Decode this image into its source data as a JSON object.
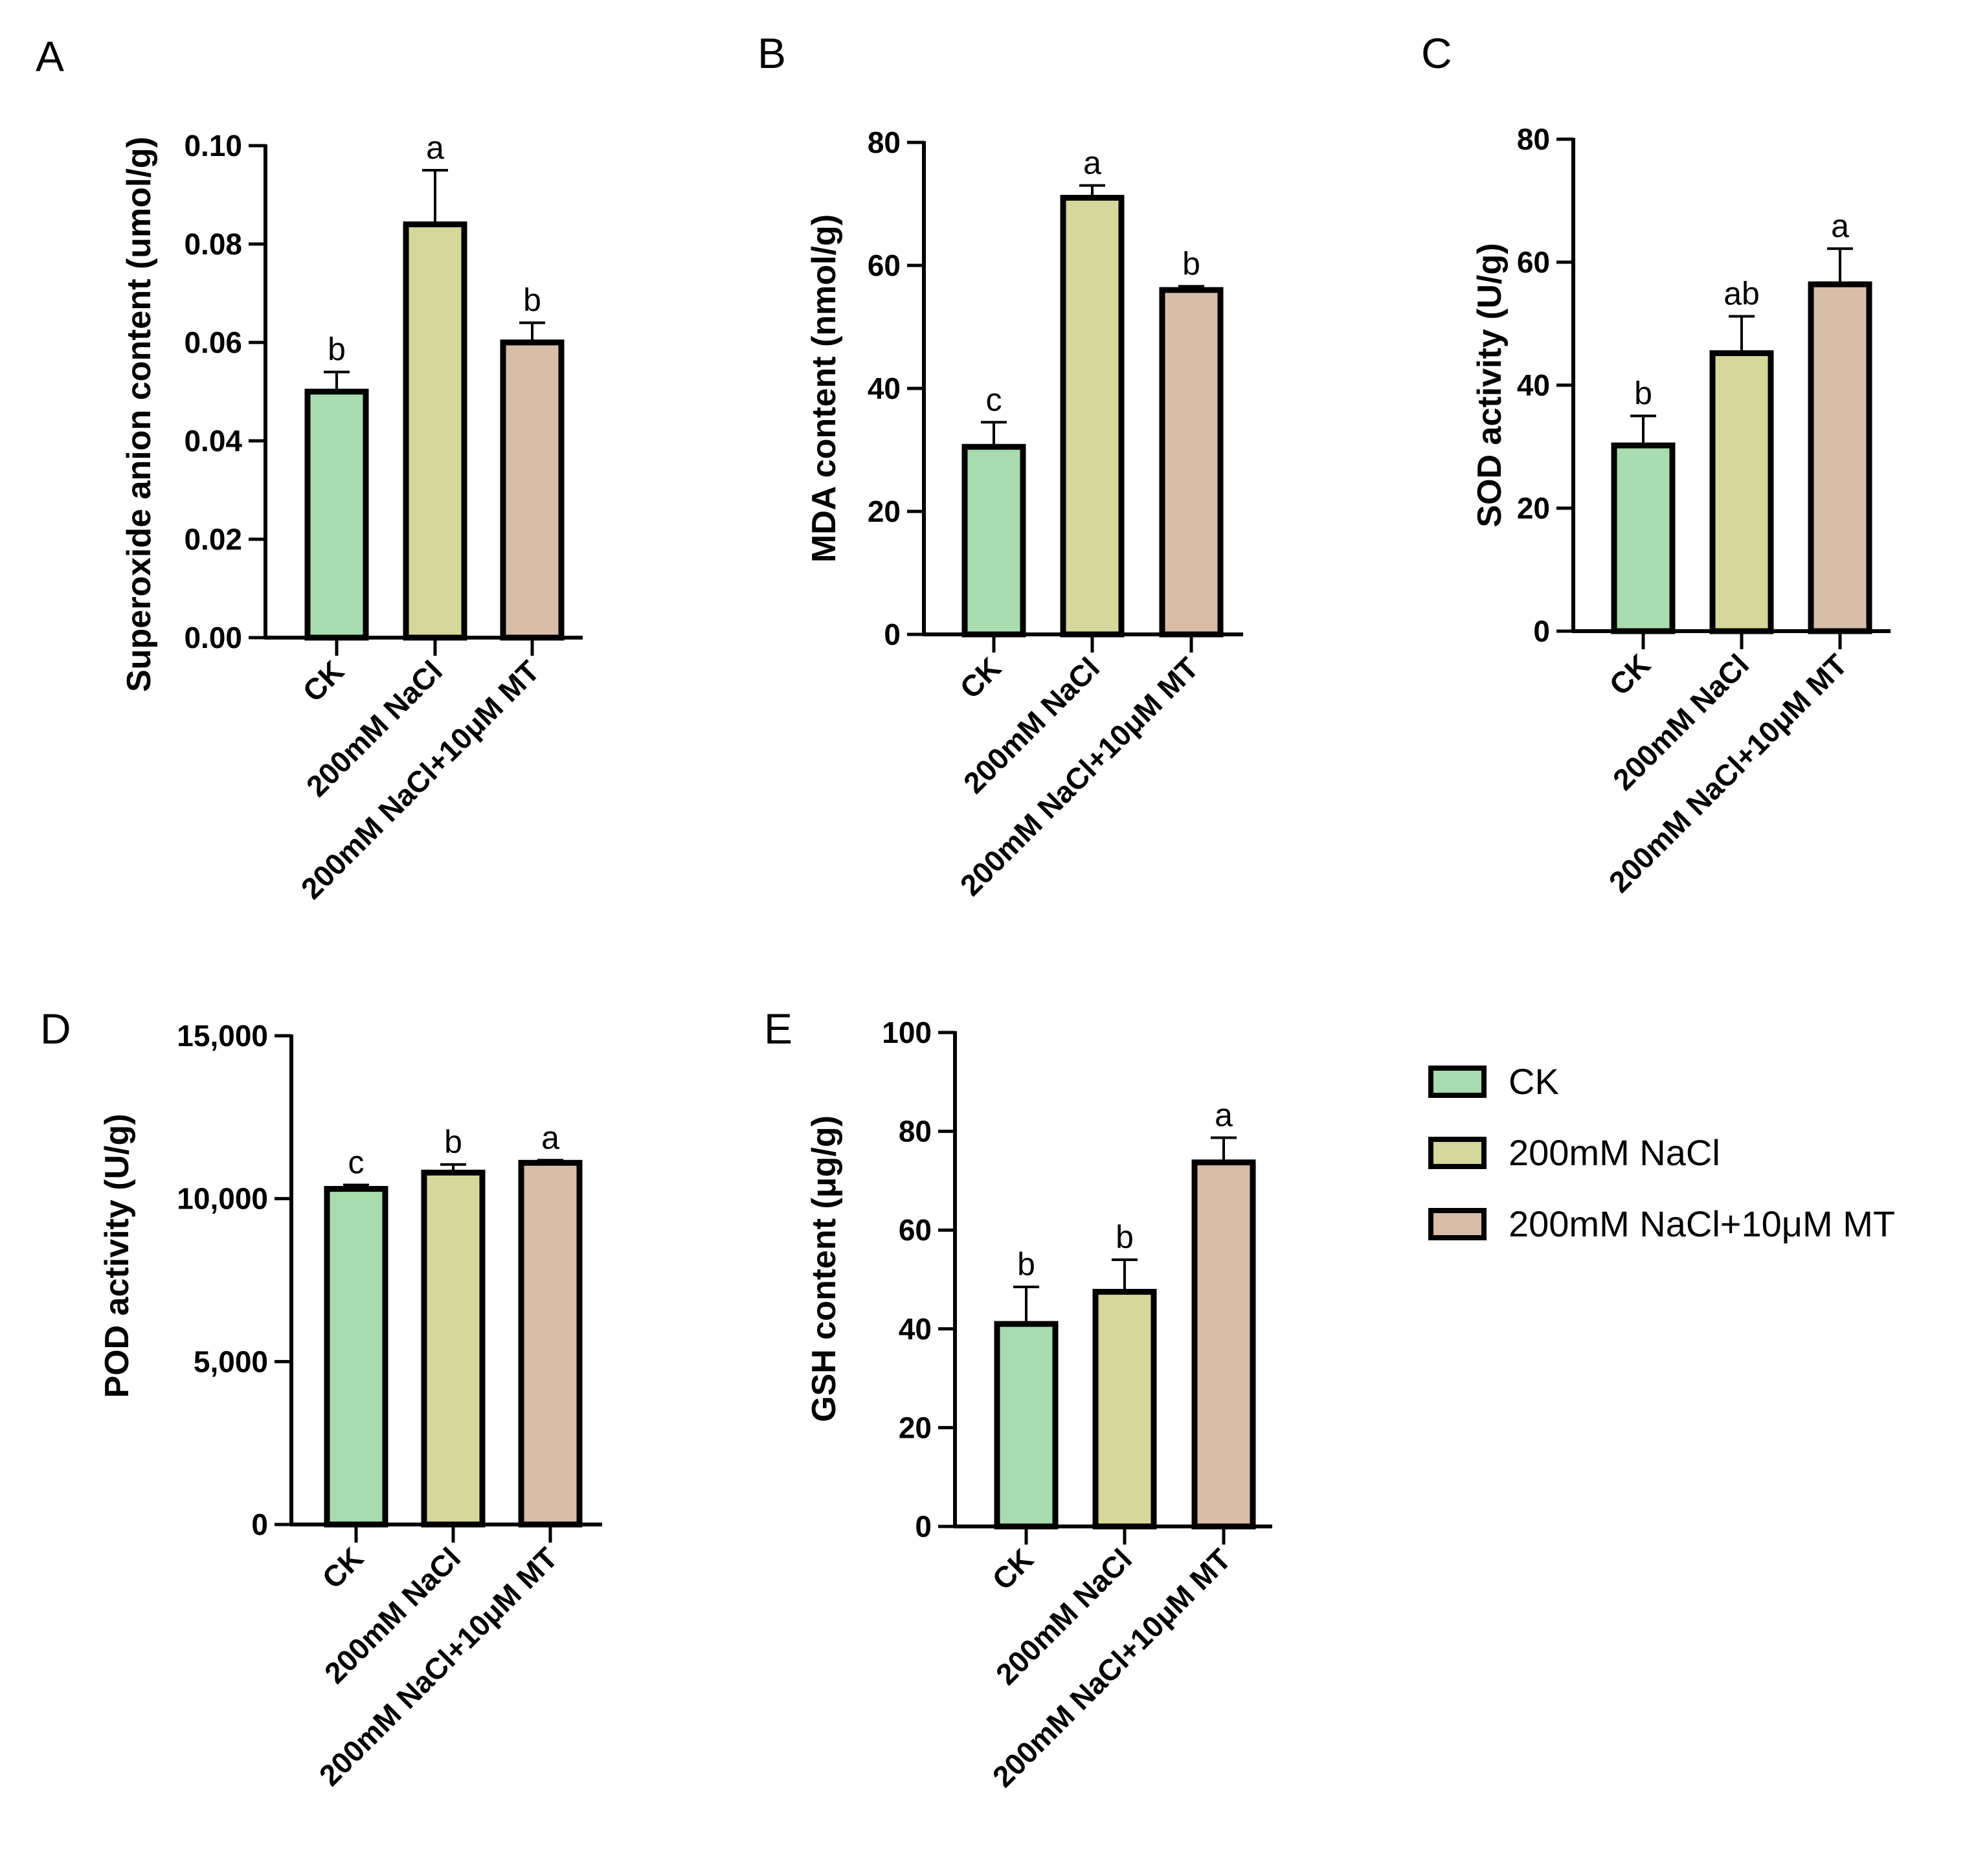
{
  "chart_data": [
    {
      "panel": "A",
      "type": "bar",
      "ylabel": "Superoxide anion content (umol/g)",
      "categories": [
        "CK",
        "200mM NaCl",
        "200mM NaCl+10μM MT"
      ],
      "values": [
        0.05,
        0.084,
        0.06
      ],
      "errors": [
        0.004,
        0.011,
        0.004
      ],
      "significance": [
        "b",
        "a",
        "b"
      ],
      "ylim": [
        0,
        0.1
      ],
      "yticks": [
        0,
        0.02,
        0.04,
        0.06,
        0.08,
        0.1
      ],
      "ytick_labels": [
        "0.00",
        "0.02",
        "0.04",
        "0.06",
        "0.08",
        "0.10"
      ]
    },
    {
      "panel": "B",
      "type": "bar",
      "ylabel": "MDA content (nmol/g)",
      "categories": [
        "CK",
        "200mM NaCl",
        "200mM NaCl+10μM MT"
      ],
      "values": [
        30.5,
        71.0,
        56.0
      ],
      "errors": [
        4.0,
        2.0,
        0.6
      ],
      "significance": [
        "c",
        "a",
        "b"
      ],
      "ylim": [
        0,
        80
      ],
      "yticks": [
        0,
        20,
        40,
        60,
        80
      ],
      "ytick_labels": [
        "0",
        "20",
        "40",
        "60",
        "80"
      ]
    },
    {
      "panel": "C",
      "type": "bar",
      "ylabel": "SOD activity (U/g)",
      "categories": [
        "CK",
        "200mM NaCl",
        "200mM NaCl+10μM MT"
      ],
      "values": [
        30.2,
        45.2,
        56.4
      ],
      "errors": [
        4.8,
        6.0,
        5.8
      ],
      "significance": [
        "b",
        "ab",
        "a"
      ],
      "ylim": [
        0,
        80
      ],
      "yticks": [
        0,
        20,
        40,
        60,
        80
      ],
      "ytick_labels": [
        "0",
        "20",
        "40",
        "60",
        "80"
      ]
    },
    {
      "panel": "D",
      "type": "bar",
      "ylabel": "POD activity (U/g)",
      "categories": [
        "CK",
        "200mM NaCl",
        "200mM NaCl+10μM MT"
      ],
      "values": [
        10300,
        10800,
        11100
      ],
      "errors": [
        120,
        250,
        80
      ],
      "significance": [
        "c",
        "b",
        "a"
      ],
      "ylim": [
        0,
        15000
      ],
      "yticks": [
        0,
        5000,
        10000,
        15000
      ],
      "ytick_labels": [
        "0",
        "5,000",
        "10,000",
        "15,000"
      ]
    },
    {
      "panel": "E",
      "type": "bar",
      "ylabel": "GSH content (μg/g)",
      "categories": [
        "CK",
        "200mM NaCl",
        "200mM NaCl+10μM MT"
      ],
      "values": [
        41.0,
        47.5,
        73.7
      ],
      "errors": [
        7.5,
        6.5,
        5.0
      ],
      "significance": [
        "b",
        "b",
        "a"
      ],
      "ylim": [
        0,
        100
      ],
      "yticks": [
        0,
        20,
        40,
        60,
        80,
        100
      ],
      "ytick_labels": [
        "0",
        "20",
        "40",
        "60",
        "80",
        "100"
      ]
    }
  ],
  "legend": {
    "items": [
      {
        "label": "CK",
        "color": "#a8dcae"
      },
      {
        "label": "200mM NaCl",
        "color": "#d6d79a"
      },
      {
        "label": "200mM NaCl+10μM MT",
        "color": "#d8bda8"
      }
    ]
  },
  "colors": {
    "ck": "#a8dcae",
    "nacl": "#d6d79a",
    "nacl_mt": "#d8bda8",
    "axis": "#000000"
  }
}
